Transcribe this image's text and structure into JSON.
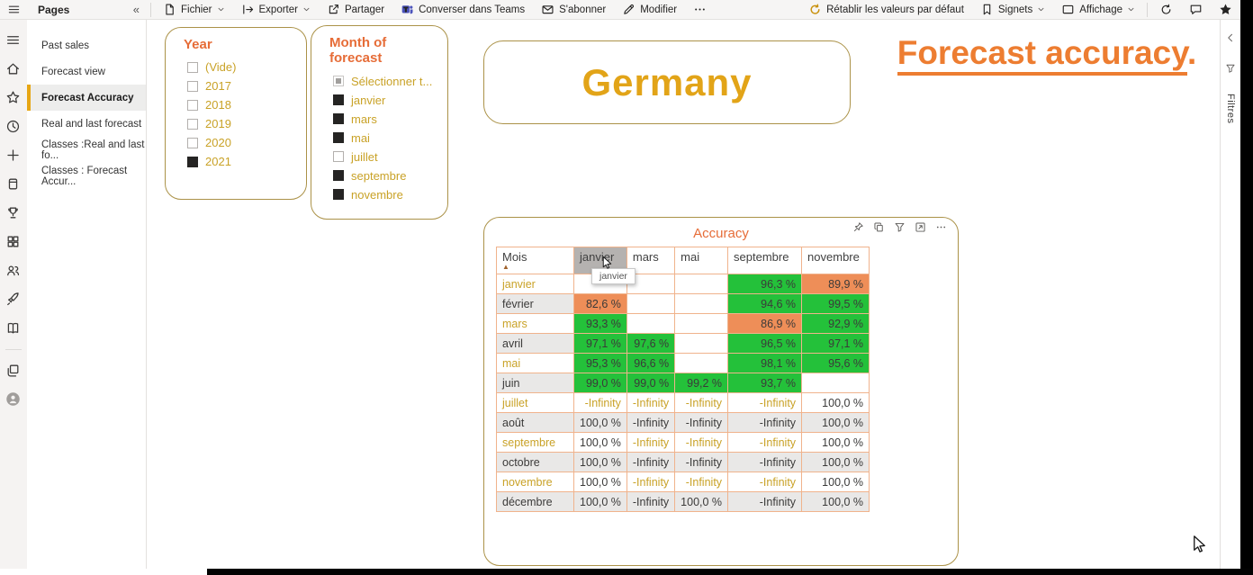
{
  "topbar": {
    "pages_header": {
      "title": "Pages",
      "collapse_glyph": "«"
    },
    "left_items": [
      {
        "name": "fichier",
        "label": "Fichier",
        "icon": "doc",
        "dropdown": true
      },
      {
        "name": "exporter",
        "label": "Exporter",
        "icon": "export",
        "dropdown": true
      },
      {
        "name": "partager",
        "label": "Partager",
        "icon": "share",
        "dropdown": false
      },
      {
        "name": "teams",
        "label": "Converser dans Teams",
        "icon": "teams",
        "dropdown": false
      },
      {
        "name": "sabonner",
        "label": "S'abonner",
        "icon": "envelope",
        "dropdown": false
      },
      {
        "name": "modifier",
        "label": "Modifier",
        "icon": "pencil",
        "dropdown": false
      },
      {
        "name": "more-options",
        "label": "",
        "icon": "ellipsis",
        "dropdown": false
      }
    ],
    "right_items": [
      {
        "name": "reset-defaults",
        "label": "Rétablir les valeurs par défaut",
        "icon": "reset",
        "dropdown": false,
        "icon_color": "#c9920e"
      },
      {
        "name": "signets",
        "label": "Signets",
        "icon": "bookmark",
        "dropdown": true
      },
      {
        "name": "affichage",
        "label": "Affichage",
        "icon": "display",
        "dropdown": true
      }
    ],
    "far_right_icons": [
      {
        "name": "refresh",
        "icon": "refresh"
      },
      {
        "name": "comments",
        "icon": "comment"
      },
      {
        "name": "favorite",
        "icon": "star-filled"
      }
    ]
  },
  "rail": {
    "items": [
      {
        "name": "global-nav",
        "icon": "menu"
      },
      {
        "name": "home",
        "icon": "home"
      },
      {
        "name": "favorites",
        "icon": "star"
      },
      {
        "name": "recent",
        "icon": "clock"
      },
      {
        "name": "create",
        "icon": "plus"
      },
      {
        "name": "datasets",
        "icon": "box"
      },
      {
        "name": "goals",
        "icon": "trophy"
      },
      {
        "name": "apps",
        "icon": "apps"
      },
      {
        "name": "shared-with-me",
        "icon": "people"
      },
      {
        "name": "deployment-pipelines",
        "icon": "rocket"
      },
      {
        "name": "learn",
        "icon": "book"
      }
    ],
    "bottom_items": [
      {
        "name": "workspaces",
        "icon": "layers"
      },
      {
        "name": "account",
        "icon": "avatar"
      }
    ]
  },
  "pages": {
    "items": [
      {
        "label": "Past sales",
        "selected": false
      },
      {
        "label": "Forecast view",
        "selected": false
      },
      {
        "label": "Forecast Accuracy",
        "selected": true
      },
      {
        "label": "Real and last forecast",
        "selected": false
      },
      {
        "label": "Classes :Real and last fo...",
        "selected": false
      },
      {
        "label": "Classes : Forecast Accur...",
        "selected": false
      }
    ]
  },
  "slicers": [
    {
      "id": "year",
      "title": "Year",
      "items": [
        {
          "label": "(Vide)",
          "state": "unchecked"
        },
        {
          "label": "2017",
          "state": "unchecked"
        },
        {
          "label": "2018",
          "state": "unchecked"
        },
        {
          "label": "2019",
          "state": "unchecked"
        },
        {
          "label": "2020",
          "state": "unchecked"
        },
        {
          "label": "2021",
          "state": "checked"
        }
      ]
    },
    {
      "id": "month",
      "title": "Month of forecast",
      "items": [
        {
          "label": "Sélectionner t...",
          "state": "partial"
        },
        {
          "label": "janvier",
          "state": "checked"
        },
        {
          "label": "mars",
          "state": "checked"
        },
        {
          "label": "mai",
          "state": "checked"
        },
        {
          "label": "juillet",
          "state": "unchecked"
        },
        {
          "label": "septembre",
          "state": "checked"
        },
        {
          "label": "novembre",
          "state": "checked"
        }
      ]
    }
  ],
  "germany_card": {
    "text": "Germany"
  },
  "page_heading": {
    "text": "Forecast accuracy",
    "suffix": "."
  },
  "filters_panel": {
    "label": "Filtres"
  },
  "matrix": {
    "title": "Accuracy",
    "row_header": "Mois",
    "sort_direction": "asc",
    "columns": [
      "janvier",
      "mars",
      "mai",
      "septembre",
      "novembre"
    ],
    "hovered_column": "janvier",
    "tooltip": "janvier",
    "rows": [
      {
        "label": "janvier",
        "band": "white",
        "label_color": "gold",
        "cells": [
          {
            "v": ""
          },
          {
            "v": ""
          },
          {
            "v": ""
          },
          {
            "v": "96,3 %",
            "bg": "green"
          },
          {
            "v": "89,9 %",
            "bg": "orange"
          }
        ]
      },
      {
        "label": "février",
        "band": "gray",
        "label_color": "dark",
        "cells": [
          {
            "v": "82,6 %",
            "bg": "orange"
          },
          {
            "v": ""
          },
          {
            "v": ""
          },
          {
            "v": "94,6 %",
            "bg": "green"
          },
          {
            "v": "99,5 %",
            "bg": "green"
          }
        ]
      },
      {
        "label": "mars",
        "band": "white",
        "label_color": "gold",
        "cells": [
          {
            "v": "93,3 %",
            "bg": "green"
          },
          {
            "v": ""
          },
          {
            "v": ""
          },
          {
            "v": "86,9 %",
            "bg": "orange"
          },
          {
            "v": "92,9 %",
            "bg": "green"
          }
        ]
      },
      {
        "label": "avril",
        "band": "gray",
        "label_color": "dark",
        "cells": [
          {
            "v": "97,1 %",
            "bg": "green"
          },
          {
            "v": "97,6 %",
            "bg": "green"
          },
          {
            "v": ""
          },
          {
            "v": "96,5 %",
            "bg": "green"
          },
          {
            "v": "97,1 %",
            "bg": "green"
          }
        ]
      },
      {
        "label": "mai",
        "band": "white",
        "label_color": "gold",
        "cells": [
          {
            "v": "95,3 %",
            "bg": "green"
          },
          {
            "v": "96,6 %",
            "bg": "green"
          },
          {
            "v": ""
          },
          {
            "v": "98,1 %",
            "bg": "green"
          },
          {
            "v": "95,6 %",
            "bg": "green"
          }
        ]
      },
      {
        "label": "juin",
        "band": "gray",
        "label_color": "dark",
        "cells": [
          {
            "v": "99,0 %",
            "bg": "green"
          },
          {
            "v": "99,0 %",
            "bg": "green"
          },
          {
            "v": "99,2 %",
            "bg": "green"
          },
          {
            "v": "93,7 %",
            "bg": "green"
          },
          {
            "v": ""
          }
        ]
      },
      {
        "label": "juillet",
        "band": "white",
        "label_color": "gold",
        "cells": [
          {
            "v": "-Infinity",
            "fg": "gold"
          },
          {
            "v": "-Infinity",
            "fg": "gold"
          },
          {
            "v": "-Infinity",
            "fg": "gold"
          },
          {
            "v": "-Infinity",
            "fg": "gold"
          },
          {
            "v": "100,0 %"
          }
        ]
      },
      {
        "label": "août",
        "band": "gray",
        "label_color": "dark",
        "cells": [
          {
            "v": "100,0 %"
          },
          {
            "v": "-Infinity"
          },
          {
            "v": "-Infinity"
          },
          {
            "v": "-Infinity"
          },
          {
            "v": "100,0 %"
          }
        ]
      },
      {
        "label": "septembre",
        "band": "white",
        "label_color": "gold",
        "cells": [
          {
            "v": "100,0 %"
          },
          {
            "v": "-Infinity",
            "fg": "gold"
          },
          {
            "v": "-Infinity",
            "fg": "gold"
          },
          {
            "v": "-Infinity",
            "fg": "gold"
          },
          {
            "v": "100,0 %"
          }
        ]
      },
      {
        "label": "octobre",
        "band": "gray",
        "label_color": "dark",
        "cells": [
          {
            "v": "100,0 %"
          },
          {
            "v": "-Infinity"
          },
          {
            "v": "-Infinity"
          },
          {
            "v": "-Infinity"
          },
          {
            "v": "100,0 %"
          }
        ]
      },
      {
        "label": "novembre",
        "band": "white",
        "label_color": "gold",
        "cells": [
          {
            "v": "100,0 %"
          },
          {
            "v": "-Infinity",
            "fg": "gold"
          },
          {
            "v": "-Infinity",
            "fg": "gold"
          },
          {
            "v": "-Infinity",
            "fg": "gold"
          },
          {
            "v": "100,0 %"
          }
        ]
      },
      {
        "label": "décembre",
        "band": "gray",
        "label_color": "dark",
        "cells": [
          {
            "v": "100,0 %"
          },
          {
            "v": "-Infinity"
          },
          {
            "v": "100,0 %"
          },
          {
            "v": "-Infinity"
          },
          {
            "v": "100,0 %"
          }
        ]
      }
    ]
  },
  "colors": {
    "green": "#24c13a",
    "orange": "#ee8e58",
    "gold_text": "#c9a227",
    "dark_text": "#3b3a39",
    "band_gray": "#e9e8e7",
    "accent_orange": "#e66c37",
    "heading_orange": "#ed7d31",
    "germany_gold": "#e2a418"
  }
}
